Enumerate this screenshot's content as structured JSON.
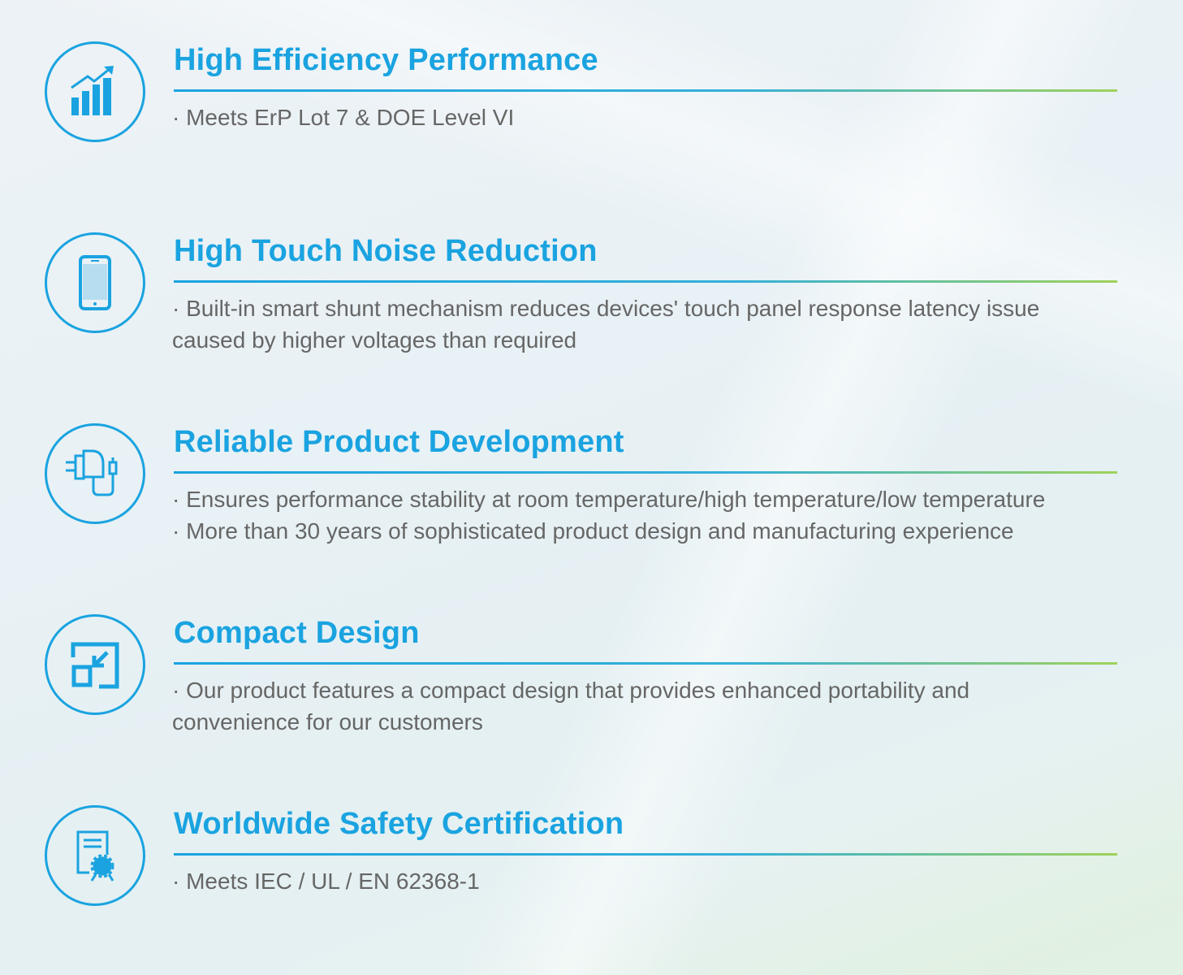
{
  "accent_color": "#1aa3e0",
  "features": [
    {
      "icon": "bar-chart-growth-icon",
      "title": "High Efficiency Performance",
      "bullets": [
        "· Meets ErP Lot 7 & DOE Level VI"
      ]
    },
    {
      "icon": "smartphone-icon",
      "title": "High Touch Noise Reduction",
      "bullets": [
        "· Built-in smart shunt mechanism reduces devices' touch panel response latency issue",
        "caused by higher voltages than required"
      ]
    },
    {
      "icon": "power-adapter-icon",
      "title": "Reliable Product Development",
      "bullets": [
        "· Ensures performance stability at room temperature/high temperature/low temperature",
        "· More than 30 years of sophisticated product  design and manufacturing experience"
      ]
    },
    {
      "icon": "compact-resize-icon",
      "title": "Compact Design",
      "bullets": [
        "· Our product features a compact design that provides enhanced portability and",
        "convenience for our customers"
      ]
    },
    {
      "icon": "certificate-icon",
      "title": "Worldwide Safety Certification",
      "bullets": [
        "· Meets IEC / UL / EN 62368-1"
      ]
    }
  ]
}
